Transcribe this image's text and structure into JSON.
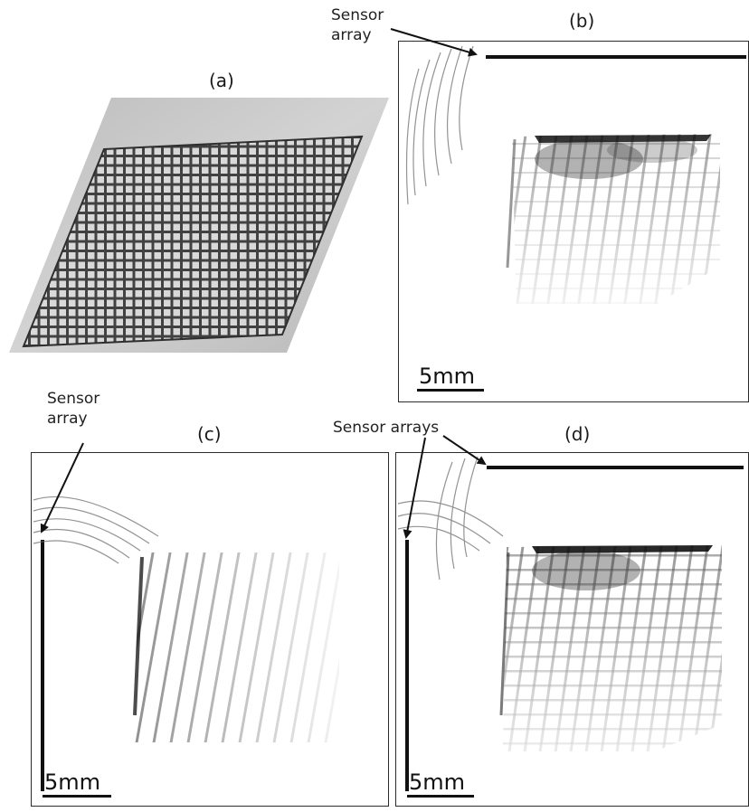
{
  "figure": {
    "panels": [
      {
        "id": "a",
        "label": "(a)"
      },
      {
        "id": "b",
        "label": "(b)",
        "scale_bar": "5mm",
        "annotation": [
          "Sensor",
          "array"
        ]
      },
      {
        "id": "c",
        "label": "(c)",
        "scale_bar": "5mm",
        "annotation": [
          "Sensor",
          "array"
        ]
      },
      {
        "id": "d",
        "label": "(d)",
        "scale_bar": "5mm",
        "annotation": [
          "Sensor arrays"
        ]
      }
    ]
  }
}
